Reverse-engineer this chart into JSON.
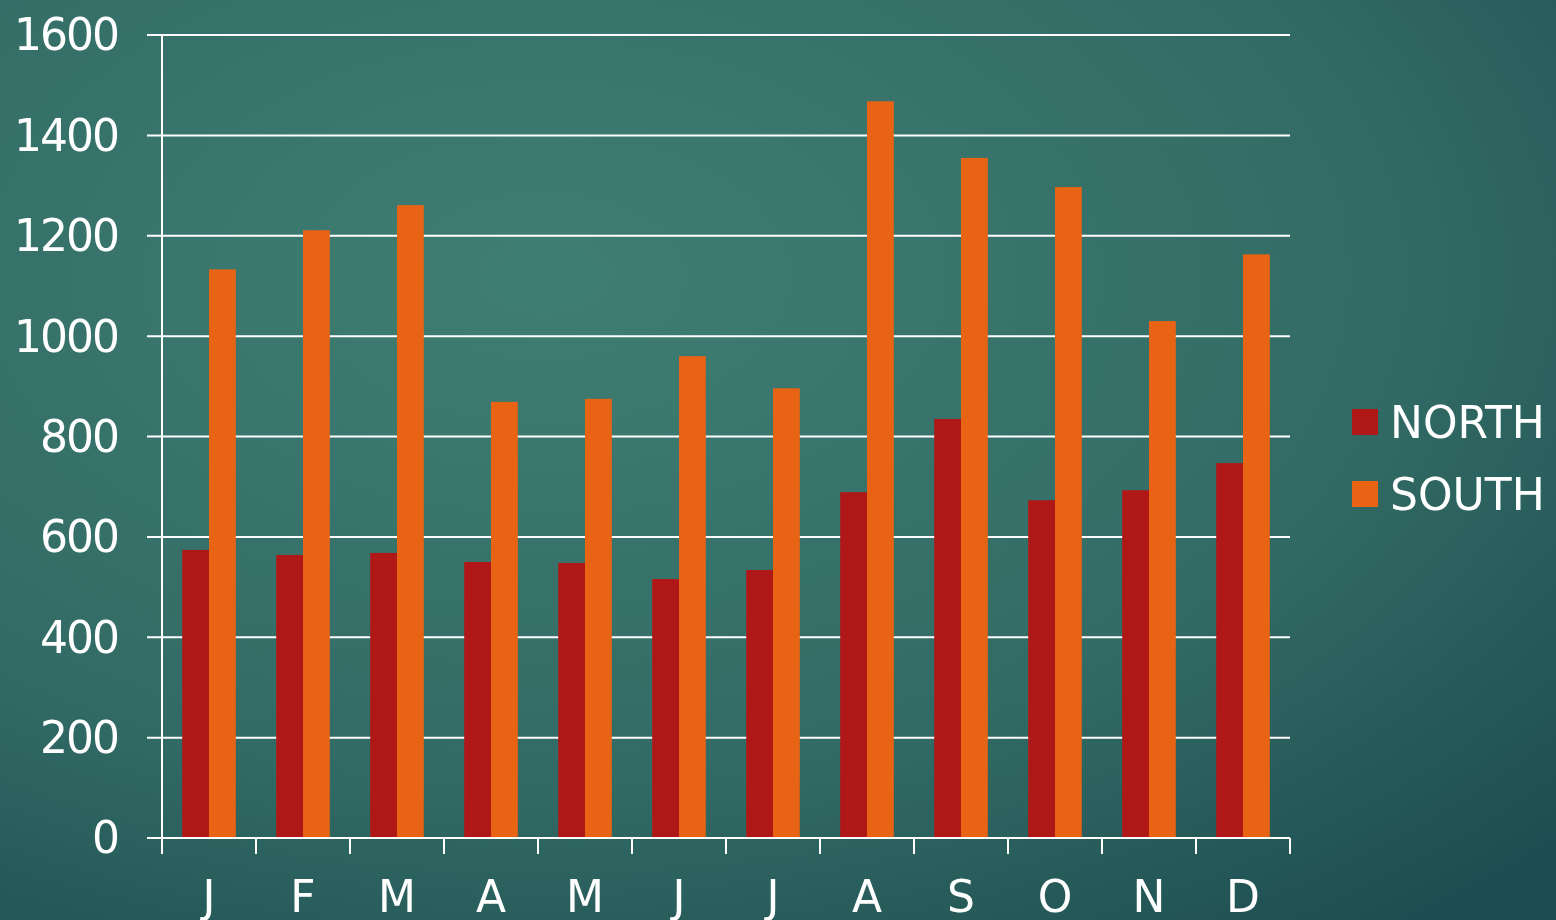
{
  "chart_data": {
    "type": "bar",
    "categories": [
      "J",
      "F",
      "M",
      "A",
      "M",
      "J",
      "J",
      "A",
      "S",
      "O",
      "N",
      "D"
    ],
    "series": [
      {
        "name": "NORTH",
        "color": "#b01818",
        "values": [
          574,
          564,
          568,
          550,
          548,
          516,
          534,
          689,
          835,
          673,
          693,
          747
        ]
      },
      {
        "name": "SOUTH",
        "color": "#e86414",
        "values": [
          1133,
          1211,
          1261,
          869,
          875,
          960,
          896,
          1468,
          1355,
          1297,
          1030,
          1163
        ]
      }
    ],
    "ylim": [
      0,
      1600
    ],
    "yticks": [
      0,
      200,
      400,
      600,
      800,
      1000,
      1200,
      1400,
      1600
    ],
    "grid": "y",
    "legend": "right"
  }
}
